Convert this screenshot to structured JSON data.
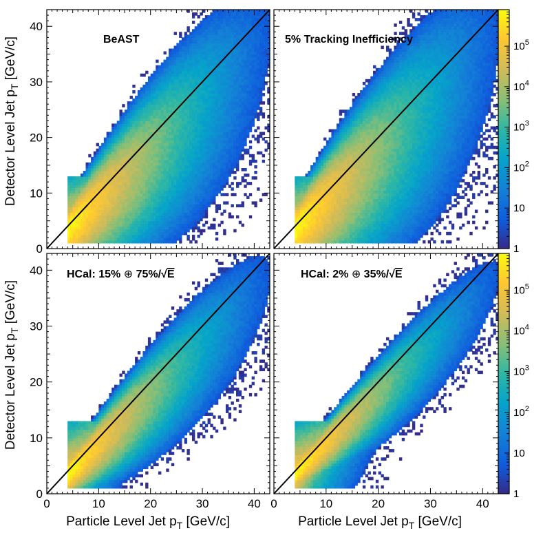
{
  "chart_data": {
    "type": "heatmap",
    "x_label": "Particle Level Jet",
    "y_label": "Detector Level Jet",
    "axis_var_main": "p",
    "axis_var_sub": "T",
    "axis_unit": "[GeV/c]",
    "xlim": [
      0,
      43
    ],
    "ylim": [
      0,
      43
    ],
    "xticks": [
      0,
      10,
      20,
      30,
      40
    ],
    "yticks": [
      0,
      10,
      20,
      30,
      40
    ],
    "colorbar": {
      "scale": "log",
      "range": [
        1,
        800000
      ],
      "tick_labels": [
        {
          "value": 1,
          "base": "1",
          "exp": ""
        },
        {
          "value": 10,
          "base": "10",
          "exp": ""
        },
        {
          "value": 100,
          "base": "10",
          "exp": "2"
        },
        {
          "value": 1000,
          "base": "10",
          "exp": "3"
        },
        {
          "value": 10000,
          "base": "10",
          "exp": "4"
        },
        {
          "value": 100000,
          "base": "10",
          "exp": "5"
        }
      ]
    },
    "panels": [
      {
        "id": "beast",
        "label": "BeAST",
        "sigma_scale": 1.0,
        "low_tail": 0.12,
        "x_start": 4,
        "y_min": 1
      },
      {
        "id": "tracking",
        "label": "5% Tracking Inefficiency",
        "sigma_scale": 1.1,
        "low_tail": 0.16,
        "x_start": 4,
        "y_min": 1
      },
      {
        "id": "hcal15",
        "label": "HCal: 15% ⊕ 75%/√E",
        "label_prefix": "HCal: 15%",
        "label_oplus": "⊕",
        "label_mid": "75%/",
        "label_sqrt": "√",
        "label_E": "E",
        "sigma_scale": 0.65,
        "low_tail": 0.06,
        "x_start": 4,
        "y_min": 1
      },
      {
        "id": "hcal2",
        "label": "HCal: 2% ⊕ 35%/√E",
        "label_prefix": "HCal: 2%",
        "label_oplus": "⊕",
        "label_mid": "35%/",
        "label_sqrt": "√",
        "label_E": "E",
        "sigma_scale": 0.5,
        "low_tail": 0.05,
        "x_start": 4,
        "y_min": 1
      }
    ],
    "reference_line": {
      "from": [
        0,
        0
      ],
      "to": [
        43,
        43
      ],
      "label": "y = x"
    }
  }
}
